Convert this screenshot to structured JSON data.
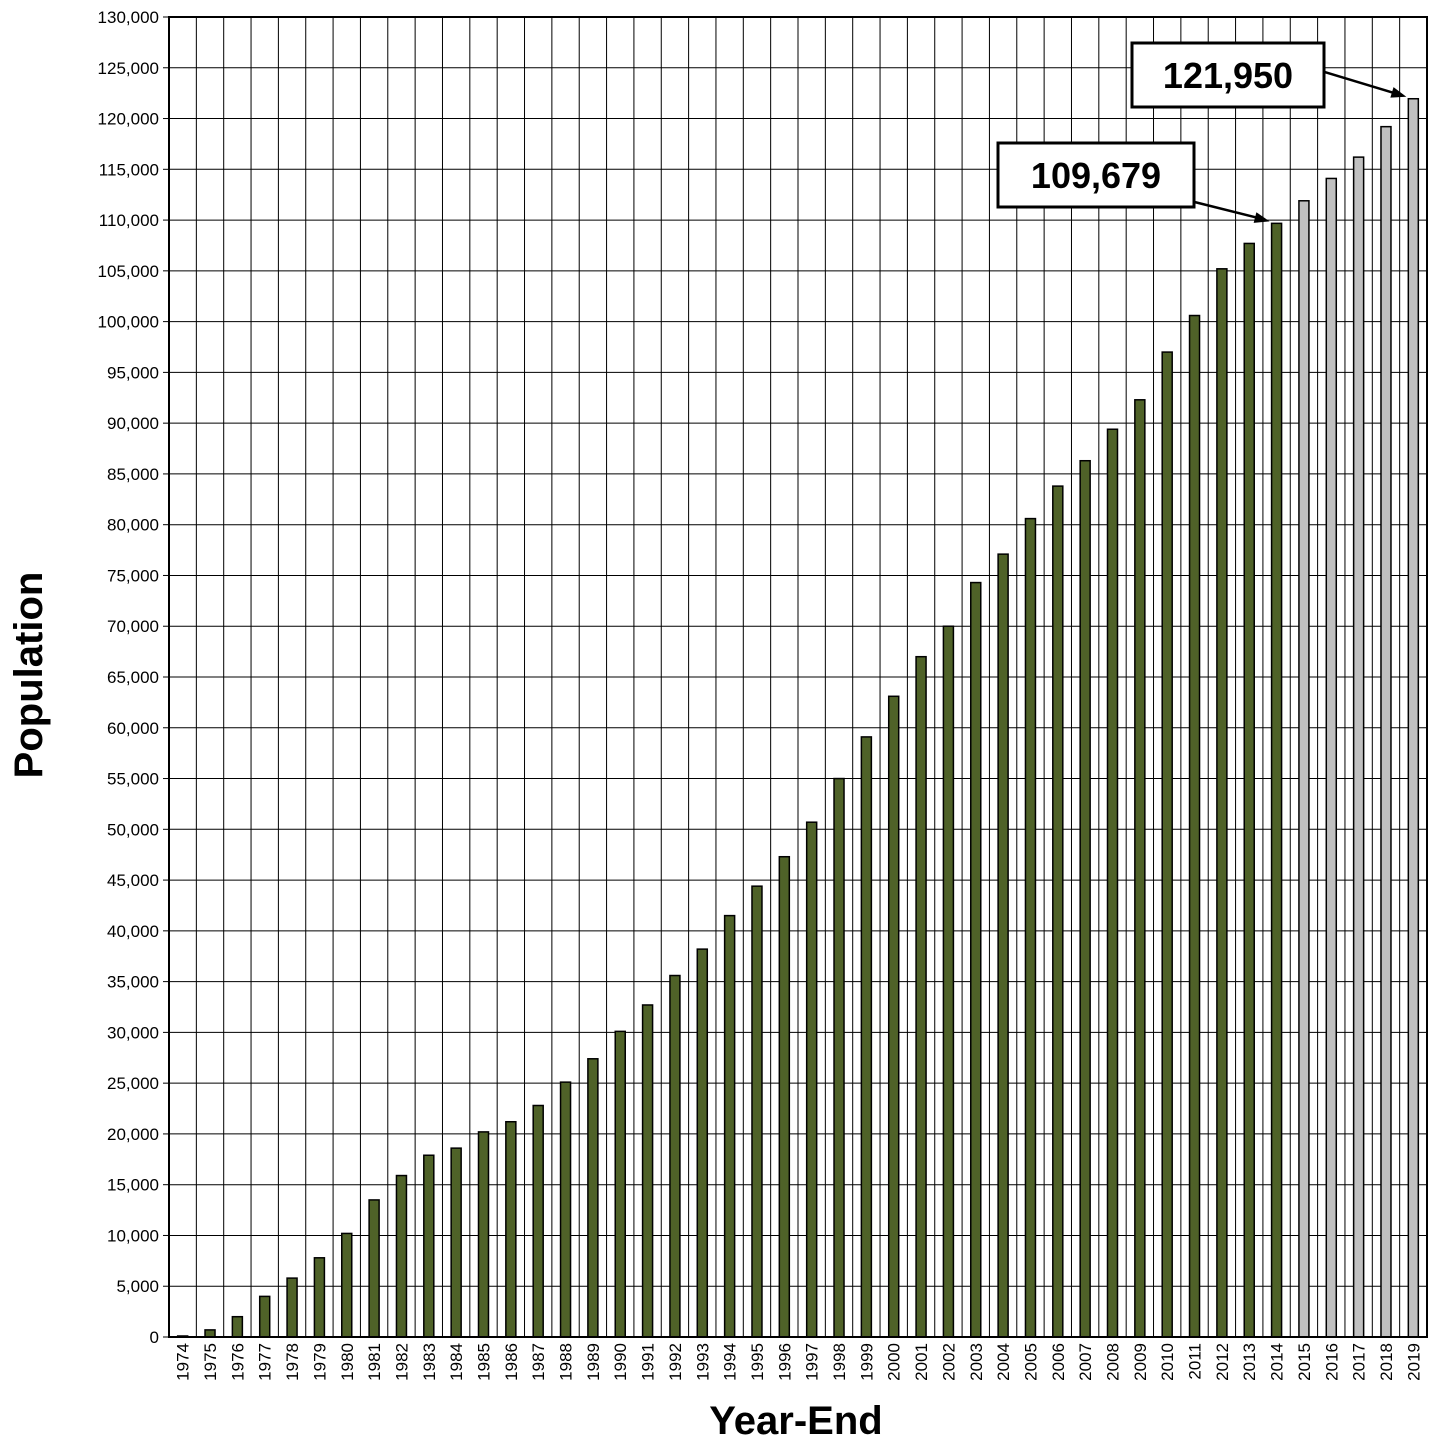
{
  "chart_data": {
    "type": "bar",
    "xlabel": "Year-End",
    "ylabel": "Population",
    "ylim": [
      0,
      130000
    ],
    "y_tick_step": 5000,
    "grid": true,
    "categories": [
      "1974",
      "1975",
      "1976",
      "1977",
      "1978",
      "1979",
      "1980",
      "1981",
      "1982",
      "1983",
      "1984",
      "1985",
      "1986",
      "1987",
      "1988",
      "1989",
      "1990",
      "1991",
      "1992",
      "1993",
      "1994",
      "1995",
      "1996",
      "1997",
      "1998",
      "1999",
      "2000",
      "2001",
      "2002",
      "2003",
      "2004",
      "2005",
      "2006",
      "2007",
      "2008",
      "2009",
      "2010",
      "2011",
      "2012",
      "2013",
      "2014",
      "2015",
      "2016",
      "2017",
      "2018",
      "2019"
    ],
    "values": [
      100,
      700,
      2000,
      4000,
      5800,
      7800,
      10200,
      13500,
      15900,
      17900,
      18600,
      20200,
      21200,
      22800,
      25100,
      27400,
      30100,
      32700,
      35600,
      38200,
      41500,
      44400,
      47300,
      50700,
      55000,
      59100,
      63100,
      67000,
      70000,
      74300,
      77100,
      80600,
      83800,
      86300,
      89400,
      92300,
      97000,
      100600,
      105200,
      107700,
      109679,
      111900,
      114100,
      116200,
      119200,
      121950
    ],
    "colors": {
      "actual": "#4f6228",
      "projected": "#c0c0c0",
      "grid": "#000000"
    },
    "projected_from": "2015",
    "annotations": [
      {
        "text": "109,679",
        "category": "2014",
        "value": 109679
      },
      {
        "text": "121,950",
        "category": "2019",
        "value": 121950
      }
    ]
  }
}
